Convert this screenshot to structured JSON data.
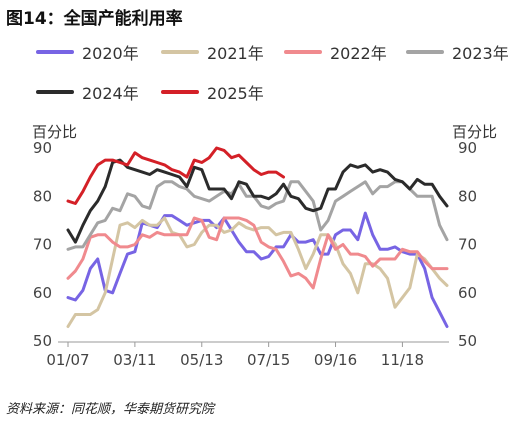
{
  "title": "图14：全国产能利用率",
  "source": "资料来源：同花顺，华泰期货研究院",
  "chart_data": {
    "type": "line",
    "title": "",
    "ylabel_left": "百分比",
    "ylabel_right": "百分比",
    "ylim": [
      50,
      90
    ],
    "yticks": [
      50,
      60,
      70,
      80,
      90
    ],
    "xlim": [
      0,
      51
    ],
    "xticks": [
      {
        "label": "01/07",
        "index": 0
      },
      {
        "label": "03/11",
        "index": 9
      },
      {
        "label": "05/13",
        "index": 18
      },
      {
        "label": "07/15",
        "index": 27
      },
      {
        "label": "09/16",
        "index": 36
      },
      {
        "label": "11/18",
        "index": 45
      }
    ],
    "grid": false,
    "legend_position": "top",
    "series": [
      {
        "name": "2020年",
        "color": "#7764E4",
        "values": [
          59,
          58.5,
          60.5,
          65,
          67,
          60.5,
          60,
          64,
          68,
          68.5,
          74.5,
          74,
          73.5,
          76,
          76,
          75,
          74,
          74.5,
          75,
          75,
          73.5,
          75.5,
          73,
          70.5,
          68.5,
          68.5,
          67,
          67.5,
          69.5,
          69.5,
          72,
          70.5,
          70.5,
          71,
          68,
          68,
          72,
          73,
          73,
          71,
          76.5,
          72,
          69,
          69,
          69.5,
          68.5,
          68,
          68,
          65,
          59,
          56,
          53
        ]
      },
      {
        "name": "2021年",
        "color": "#D4C5A3",
        "values": [
          53,
          55.5,
          55.5,
          55.5,
          56.5,
          60,
          67,
          74,
          74.5,
          73.5,
          75,
          74,
          74,
          75.5,
          72.5,
          72,
          69.5,
          70,
          72.5,
          74,
          74,
          72.5,
          73,
          74.5,
          73.5,
          73,
          73.5,
          73.5,
          72,
          72.5,
          72.5,
          69,
          65,
          68,
          72,
          72,
          70,
          66,
          64,
          60,
          66,
          66,
          65,
          63,
          57,
          59,
          61,
          68,
          67,
          65,
          63,
          61.5
        ]
      },
      {
        "name": "2022年",
        "color": "#F08A8E",
        "values": [
          63,
          64.5,
          67,
          71.5,
          72,
          72,
          70.5,
          69.5,
          69.5,
          70,
          72,
          71.5,
          72.5,
          72,
          72,
          72,
          72,
          75.5,
          75,
          71.5,
          71,
          75.5,
          75.5,
          75.5,
          75,
          74,
          70.5,
          69.5,
          69,
          66.5,
          63.5,
          64,
          63,
          61,
          67,
          72,
          69,
          70,
          68,
          68,
          67.5,
          65.5,
          67,
          67,
          67,
          69,
          68.5,
          68.5,
          66.5,
          65,
          65,
          65
        ]
      },
      {
        "name": "2023年",
        "color": "#A4A4A4",
        "values": [
          69,
          69.5,
          69.5,
          72,
          74.5,
          75,
          77.5,
          77,
          80.5,
          80,
          78,
          77.5,
          82,
          83,
          83,
          82,
          81.5,
          80,
          79.5,
          79,
          80,
          81,
          80.5,
          82.5,
          80,
          80,
          78,
          77.5,
          78.5,
          79,
          83,
          83,
          81,
          79,
          73,
          75,
          79,
          80,
          81,
          82,
          83,
          80.5,
          82,
          82,
          83,
          83,
          81.5,
          80,
          80,
          80,
          74,
          71
        ]
      },
      {
        "name": "2024年",
        "color": "#2B2B2B",
        "values": [
          73,
          70.5,
          74,
          77,
          79,
          82,
          87,
          87.5,
          86,
          85.5,
          85,
          84.5,
          85.5,
          85,
          84.5,
          84,
          82,
          86,
          85.5,
          81.5,
          81.5,
          81.5,
          79.5,
          83,
          82.5,
          80,
          80,
          79.5,
          80.5,
          82.5,
          80,
          79.5,
          77.5,
          77,
          77.5,
          81.5,
          81.5,
          85,
          86.5,
          86,
          86.5,
          85,
          85.5,
          85,
          83.5,
          83,
          81.5,
          83.5,
          82.5,
          82.5,
          80,
          78
        ]
      },
      {
        "name": "2025年",
        "color": "#D42027",
        "values": [
          79,
          78.5,
          81,
          84,
          86.5,
          87.5,
          87.5,
          87,
          86.5,
          89,
          88,
          87.5,
          87,
          86.5,
          85.5,
          85,
          84,
          87.5,
          87,
          88,
          90,
          89.5,
          88,
          88.5,
          87,
          85.5,
          84.5,
          85,
          85,
          84
        ]
      }
    ]
  }
}
